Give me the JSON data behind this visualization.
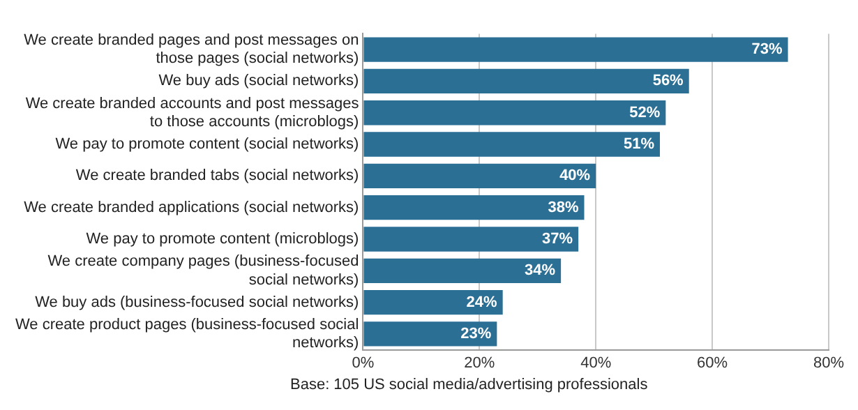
{
  "chart_data": {
    "type": "bar",
    "orientation": "horizontal",
    "categories": [
      "We create branded pages and post messages on those pages (social networks)",
      "We buy ads (social networks)",
      "We create branded accounts and post messages to those accounts (microblogs)",
      "We pay to promote content (social networks)",
      "We create branded tabs (social networks)",
      "We create branded applications (social networks)",
      "We pay to promote content (microblogs)",
      "We create company pages (business-focused social networks)",
      "We buy ads (business-focused social networks)",
      "We create product pages (business-focused social networks)"
    ],
    "values": [
      73,
      56,
      52,
      51,
      40,
      38,
      37,
      34,
      24,
      23
    ],
    "value_labels": [
      "73%",
      "56%",
      "52%",
      "51%",
      "40%",
      "38%",
      "37%",
      "34%",
      "24%",
      "23%"
    ],
    "color": "#2b6f94",
    "xlim": [
      0,
      80
    ],
    "xticks": [
      {
        "value": 0,
        "label": "0%"
      },
      {
        "value": 20,
        "label": "20%"
      },
      {
        "value": 40,
        "label": "40%"
      },
      {
        "value": 60,
        "label": "60%"
      },
      {
        "value": 80,
        "label": "80%"
      }
    ],
    "grid": "x",
    "legend": false,
    "annotations": [
      "Base: 105 US social media/advertising professionals"
    ]
  }
}
